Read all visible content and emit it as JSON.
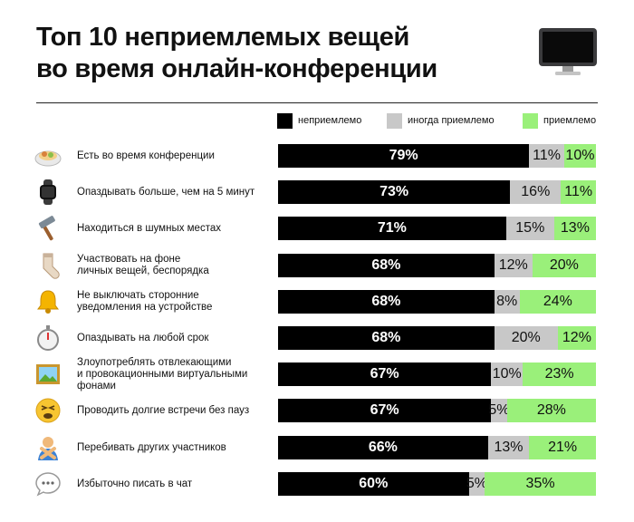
{
  "header": {
    "title_line1": "Топ 10 неприемлемых вещей",
    "title_line2": "во время онлайн-конференции"
  },
  "colors": {
    "unacceptable": "#000000",
    "sometimes": "#c8c8c8",
    "acceptable": "#9af07a"
  },
  "chart_data": {
    "type": "bar",
    "orientation": "horizontal",
    "stacked": true,
    "title": "Топ 10 неприемлемых вещей во время онлайн-конференции",
    "unit": "%",
    "legend": [
      "неприемлемо",
      "иногда приемлемо",
      "приемлемо"
    ],
    "legend_position": "top",
    "series": [
      {
        "name": "неприемлемо",
        "values": [
          79,
          73,
          71,
          68,
          68,
          68,
          67,
          67,
          66,
          60
        ]
      },
      {
        "name": "иногда приемлемо",
        "values": [
          11,
          16,
          15,
          12,
          8,
          20,
          10,
          5,
          13,
          5
        ]
      },
      {
        "name": "приемлемо",
        "values": [
          10,
          11,
          13,
          20,
          24,
          12,
          23,
          28,
          21,
          35
        ]
      }
    ],
    "categories": [
      {
        "icon": "food-plate-icon",
        "lines": [
          "Есть во время конференции"
        ]
      },
      {
        "icon": "smartwatch-icon",
        "lines": [
          "Опаздывать больше, чем на 5 минут"
        ]
      },
      {
        "icon": "hammer-icon",
        "lines": [
          "Находиться в шумных местах"
        ]
      },
      {
        "icon": "sock-icon",
        "lines": [
          "Участвовать на фоне",
          "личных вещей, беспорядка"
        ]
      },
      {
        "icon": "bell-icon",
        "lines": [
          "Не выключать сторонние",
          "уведомления на устройстве"
        ]
      },
      {
        "icon": "stopwatch-icon",
        "lines": [
          "Опаздывать на любой срок"
        ]
      },
      {
        "icon": "framed-picture-icon",
        "lines": [
          "Злоупотреблять отвлекающими",
          "и провокационными виртуальными",
          "фонами"
        ]
      },
      {
        "icon": "tired-face-icon",
        "lines": [
          "Проводить долгие встречи без пауз"
        ]
      },
      {
        "icon": "gesturing-no-icon",
        "lines": [
          "Перебивать других участников"
        ]
      },
      {
        "icon": "speech-bubble-icon",
        "lines": [
          "Избыточно писать в чат"
        ]
      }
    ]
  }
}
